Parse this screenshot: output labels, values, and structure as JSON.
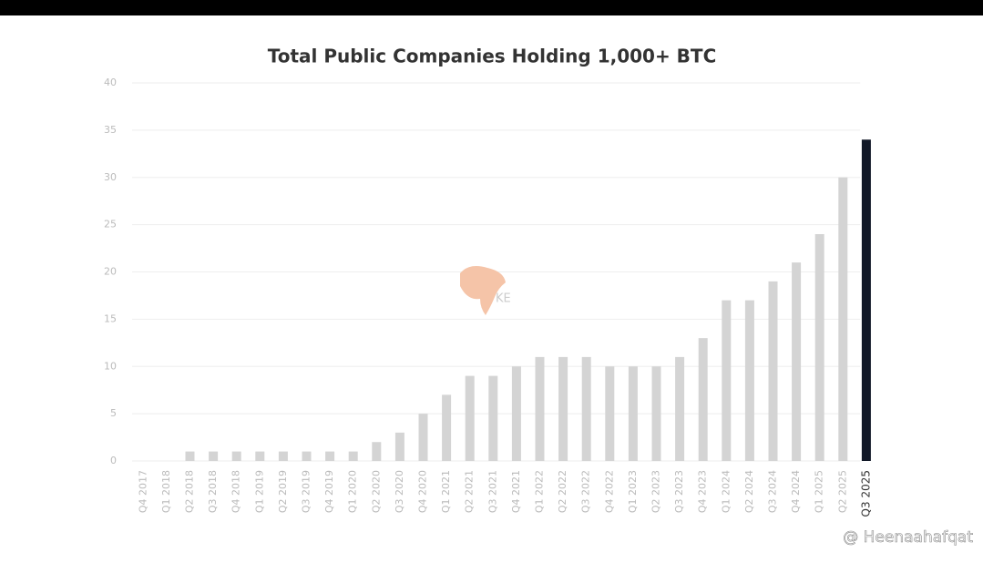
{
  "chart_data": {
    "type": "bar",
    "title": "Total Public Companies Holding 1,000+ BTC",
    "categories": [
      "Q4 2017",
      "Q1 2018",
      "Q2 2018",
      "Q3 2018",
      "Q4 2018",
      "Q1 2019",
      "Q2 2019",
      "Q3 2019",
      "Q4 2019",
      "Q1 2020",
      "Q2 2020",
      "Q3 2020",
      "Q4 2020",
      "Q1 2021",
      "Q2 2021",
      "Q3 2021",
      "Q4 2021",
      "Q1 2022",
      "Q2 2022",
      "Q3 2022",
      "Q4 2022",
      "Q1 2023",
      "Q2 2023",
      "Q3 2023",
      "Q4 2023",
      "Q1 2024",
      "Q2 2024",
      "Q3 2024",
      "Q4 2024",
      "Q1 2025",
      "Q2 2025",
      "Q3 2025"
    ],
    "values": [
      0,
      0,
      1,
      1,
      1,
      1,
      1,
      1,
      1,
      1,
      2,
      3,
      5,
      7,
      9,
      9,
      10,
      11,
      11,
      11,
      10,
      10,
      10,
      11,
      13,
      17,
      17,
      19,
      21,
      24,
      30,
      34
    ],
    "colors": [
      "#d4d4d4",
      "#d4d4d4",
      "#d4d4d4",
      "#d4d4d4",
      "#d4d4d4",
      "#d4d4d4",
      "#d4d4d4",
      "#d4d4d4",
      "#d4d4d4",
      "#d4d4d4",
      "#d4d4d4",
      "#d4d4d4",
      "#d4d4d4",
      "#d4d4d4",
      "#d4d4d4",
      "#d4d4d4",
      "#d4d4d4",
      "#d4d4d4",
      "#d4d4d4",
      "#d4d4d4",
      "#d4d4d4",
      "#d4d4d4",
      "#d4d4d4",
      "#d4d4d4",
      "#d4d4d4",
      "#d4d4d4",
      "#d4d4d4",
      "#d4d4d4",
      "#d4d4d4",
      "#d4d4d4",
      "#d4d4d4",
      "#111827"
    ],
    "ylim": [
      0,
      40
    ],
    "yticks": [
      0,
      5,
      10,
      15,
      20,
      25,
      30,
      35,
      40
    ],
    "grid": true,
    "annotations": [
      "KE",
      "@ Heenaahafqat"
    ]
  }
}
